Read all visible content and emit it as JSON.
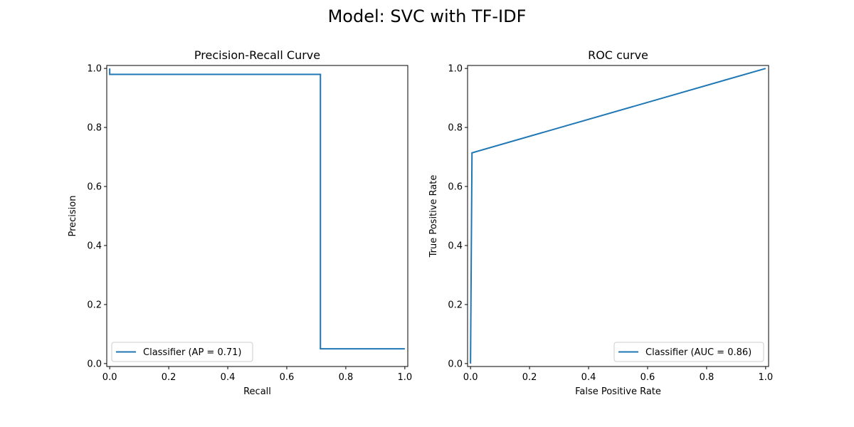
{
  "figure": {
    "suptitle": "Model: SVC with TF-IDF"
  },
  "chart_data": [
    {
      "type": "line",
      "title": "Precision-Recall Curve",
      "xlabel": "Recall",
      "ylabel": "Precision",
      "xlim": [
        -0.01,
        1.01
      ],
      "ylim": [
        -0.01,
        1.01
      ],
      "xticks": [
        0.0,
        0.2,
        0.4,
        0.6,
        0.8,
        1.0
      ],
      "xtick_labels": [
        "0.0",
        "0.2",
        "0.4",
        "0.6",
        "0.8",
        "1.0"
      ],
      "yticks": [
        0.0,
        0.2,
        0.4,
        0.6,
        0.8,
        1.0
      ],
      "ytick_labels": [
        "0.0",
        "0.2",
        "0.4",
        "0.6",
        "0.8",
        "1.0"
      ],
      "grid": false,
      "legend_position": "lower-left",
      "series": [
        {
          "name": "Classifier (AP = 0.71)",
          "color": "#1f77b4",
          "x": [
            0.0,
            0.0,
            0.714,
            0.714,
            1.0
          ],
          "y": [
            1.0,
            0.98,
            0.98,
            0.05,
            0.05
          ]
        }
      ]
    },
    {
      "type": "line",
      "title": "ROC curve",
      "xlabel": "False Positive Rate",
      "ylabel": "True Positive Rate",
      "xlim": [
        -0.01,
        1.01
      ],
      "ylim": [
        -0.01,
        1.01
      ],
      "xticks": [
        0.0,
        0.2,
        0.4,
        0.6,
        0.8,
        1.0
      ],
      "xtick_labels": [
        "0.0",
        "0.2",
        "0.4",
        "0.6",
        "0.8",
        "1.0"
      ],
      "yticks": [
        0.0,
        0.2,
        0.4,
        0.6,
        0.8,
        1.0
      ],
      "ytick_labels": [
        "0.0",
        "0.2",
        "0.4",
        "0.6",
        "0.8",
        "1.0"
      ],
      "grid": false,
      "legend_position": "lower-right",
      "series": [
        {
          "name": "Classifier (AUC = 0.86)",
          "color": "#1f77b4",
          "x": [
            0.0,
            0.0,
            0.005,
            1.0
          ],
          "y": [
            0.0,
            0.0,
            0.714,
            1.0
          ]
        }
      ]
    }
  ]
}
